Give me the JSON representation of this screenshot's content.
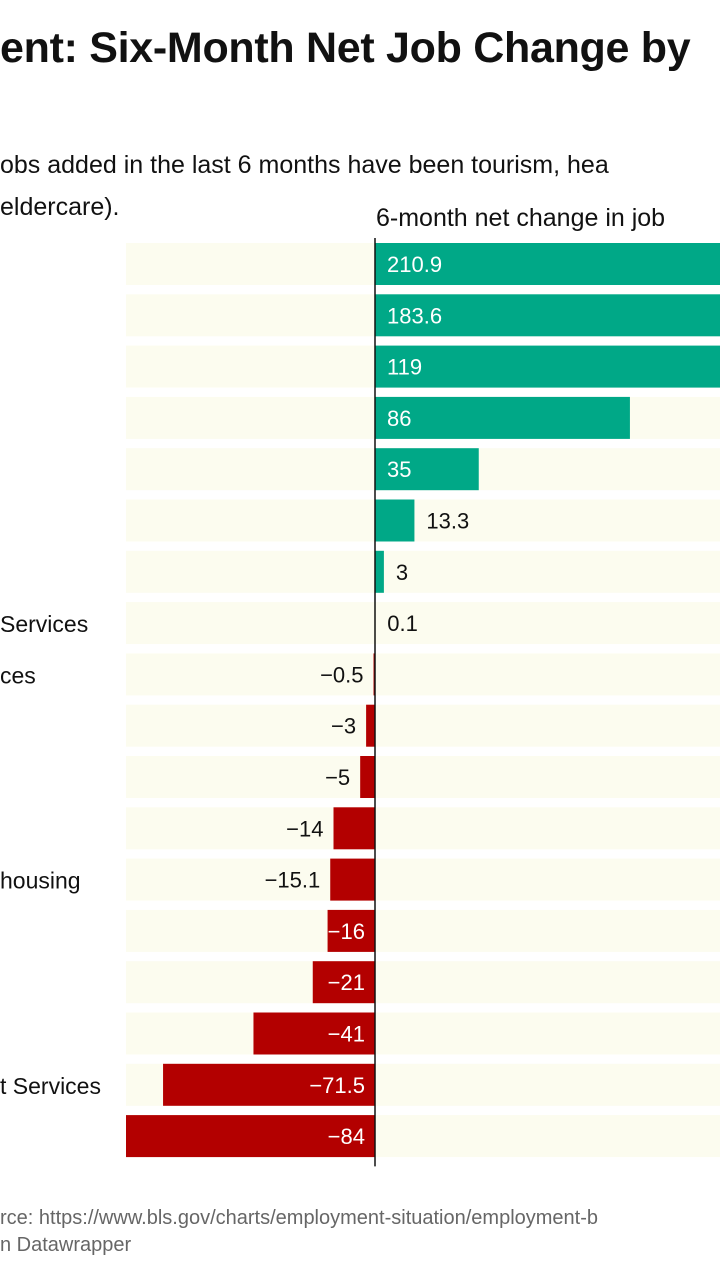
{
  "header": {
    "title": "ent: Six-Month Net Job Change by",
    "subtitle_line1": "obs added in the last 6 months have been tourism, hea",
    "subtitle_line2": "eldercare)."
  },
  "colors": {
    "positive": "#00a887",
    "negative": "#b30000",
    "band": "#fcfcef",
    "axis": "#111111"
  },
  "chart_data": {
    "type": "bar",
    "orientation": "horizontal",
    "title": "ent: Six-Month Net Job Change by",
    "xlabel": "6-month net change in job",
    "xlim": [
      -84,
      210.9
    ],
    "categories": [
      "",
      "",
      "",
      "",
      "",
      "",
      "",
      "Services",
      "ces",
      "",
      "",
      "",
      "housing",
      "",
      "",
      "",
      "Services",
      ""
    ],
    "category_prefixes": [
      "",
      "",
      "",
      "",
      "",
      "",
      "",
      "",
      "",
      "",
      "",
      "",
      "",
      "",
      "",
      "",
      "t",
      ""
    ],
    "values": [
      210.9,
      183.6,
      119,
      86,
      35,
      13.3,
      3,
      0.1,
      -0.5,
      -3,
      -5,
      -14,
      -15.1,
      -16,
      -21,
      -41,
      -71.5,
      -84
    ],
    "value_labels": [
      "210.9",
      "183.6",
      "119",
      "86",
      "35",
      "13.3",
      "3",
      "0.1",
      "−0.5",
      "−3",
      "−5",
      "−14",
      "−15.1",
      "−16",
      "−21",
      "−41",
      "−71.5",
      "−84"
    ]
  },
  "footer": {
    "source": "rce: https://www.bls.gov/charts/employment-situation/employment-b",
    "credit": "n Datawrapper"
  }
}
